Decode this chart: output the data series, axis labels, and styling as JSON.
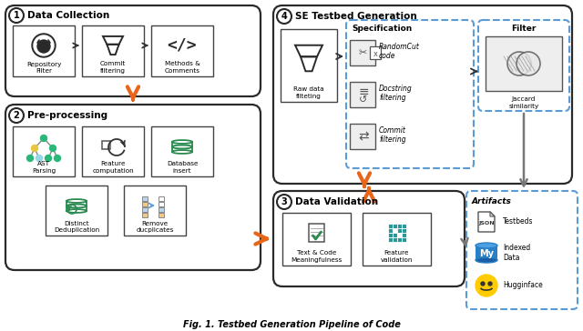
{
  "title": "Fig. 1. Testbed Generation Pipeline of Code",
  "bg_color": "#ffffff",
  "orange_arrow": "#e8651a",
  "gray_arrow": "#777777",
  "blue_dashed": "#5b9bd5",
  "section1_title": "Data Collection",
  "section2_title": "Pre-processing",
  "section3_title": "Data Validation",
  "section4_title": "SE Testbed Generation",
  "items_s1": [
    "Repository\nFilter",
    "Commit\nfiltering",
    "Methods &\nComments"
  ],
  "items_s2_top": [
    "AST\nParsing",
    "Feature\ncomputation",
    "Database\ninsert"
  ],
  "items_s2_bot": [
    "Distinct\nDeduplication",
    "Remove\nducplicates"
  ],
  "items_s3": [
    "Text & Code\nMeaningfulness",
    "Feature\nvalidation"
  ],
  "spec_items": [
    "RandomCut\ncode",
    "Docstring\nfiltering",
    "Commit\nfiltering"
  ],
  "artifacts": [
    "Testbeds",
    "Indexed\nData",
    "Hugginface"
  ],
  "filter_label": "Raw data\nfilteting",
  "jaccard_label": "Jaccard\nsimilarity",
  "spec_label": "Specification",
  "filter_box_label": "Filter",
  "artifacts_label": "Artifacts"
}
